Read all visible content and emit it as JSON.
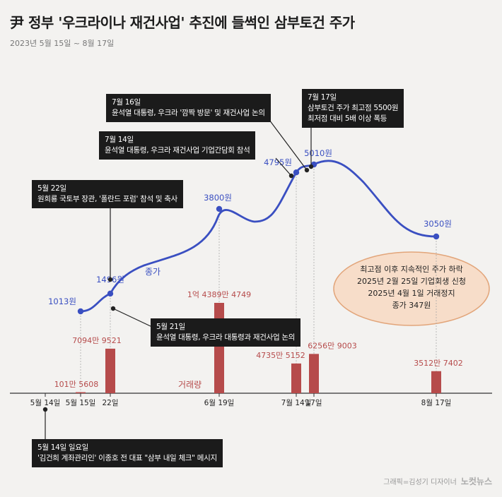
{
  "title": "尹 정부 '우크라이나 재건사업' 추진에 들썩인 삼부토건 주가",
  "subtitle": "2023년 5월 15일 ~ 8월 17일",
  "chart_data": {
    "type": "line",
    "title": "尹 정부 '우크라이나 재건사업' 추진에 들썩인 삼부토건 주가",
    "subtitle": "2023년 5월 15일 ~ 8월 17일",
    "x_ticks": [
      "5월 14일",
      "5월 15일",
      "22일",
      "6월 19일",
      "7월 14일",
      "17일",
      "8월 17일"
    ],
    "price_series": {
      "name": "종가",
      "unit": "원",
      "points": [
        {
          "x": "5월 15일",
          "value": 1013,
          "label": "1013원"
        },
        {
          "x": "22일",
          "value": 1496,
          "label": "1496원"
        },
        {
          "x": "6월 19일",
          "value": 3800,
          "label": "3800원"
        },
        {
          "x": "7월 14일",
          "value": 4795,
          "label": "4795원"
        },
        {
          "x": "17일",
          "value": 5010,
          "label": "5010원"
        },
        {
          "x": "8월 17일",
          "value": 3050,
          "label": "3050원"
        }
      ]
    },
    "volume_series": {
      "name": "거래량",
      "bars": [
        {
          "x": "5월 15일",
          "value": 1015608,
          "label": "101만 5608"
        },
        {
          "x": "22일",
          "value": 70949521,
          "label": "7094만 9521"
        },
        {
          "x": "6월 19일",
          "value": 143894749,
          "label": "1억 4389만 4749"
        },
        {
          "x": "7월 14일",
          "value": 47355152,
          "label": "4735만 5152"
        },
        {
          "x": "17일",
          "value": 62569003,
          "label": "6256만 9003"
        },
        {
          "x": "8월 17일",
          "value": 35127402,
          "label": "3512만 7402"
        }
      ]
    },
    "annotations": [
      {
        "date": "7월 16일",
        "text": "윤석열 대통령, 우크라 '깜짝 방문' 및 재건사업 논의"
      },
      {
        "date": "7월 17일",
        "text": "삼부토건 주가 최고점 5500원",
        "text2": "최저점 대비 5배 이상 폭등"
      },
      {
        "date": "7월 14일",
        "text": "윤석열 대통령, 우크라 재건사업 기업간담회 참석"
      },
      {
        "date": "5월 22일",
        "text": "원희룡 국토부 장관, '폴란드 포럼' 참석 및 축사"
      },
      {
        "date": "5월 21일",
        "text": "윤석열 대통령, 우크라 대통령과 재건사업 논의"
      },
      {
        "date": "5월 14일 일요일",
        "text": "'김건희 계좌관리인' 이종호 전 대표 \"삼부 내일 체크\" 메시지"
      }
    ],
    "note": [
      "최고점 이후 지속적인 주가 하락",
      "2025년 2월 25일 기업회생 신청",
      "2025년 4월 1일 거래정지",
      "종가 347원"
    ],
    "colors": {
      "price": "#3a4fc1",
      "volume": "#b64b4b",
      "note_fill": "#f7ddc9",
      "note_stroke": "#e2a57a"
    }
  },
  "credit": "그래픽=김성기 디자이너",
  "brand": "노컷뉴스"
}
